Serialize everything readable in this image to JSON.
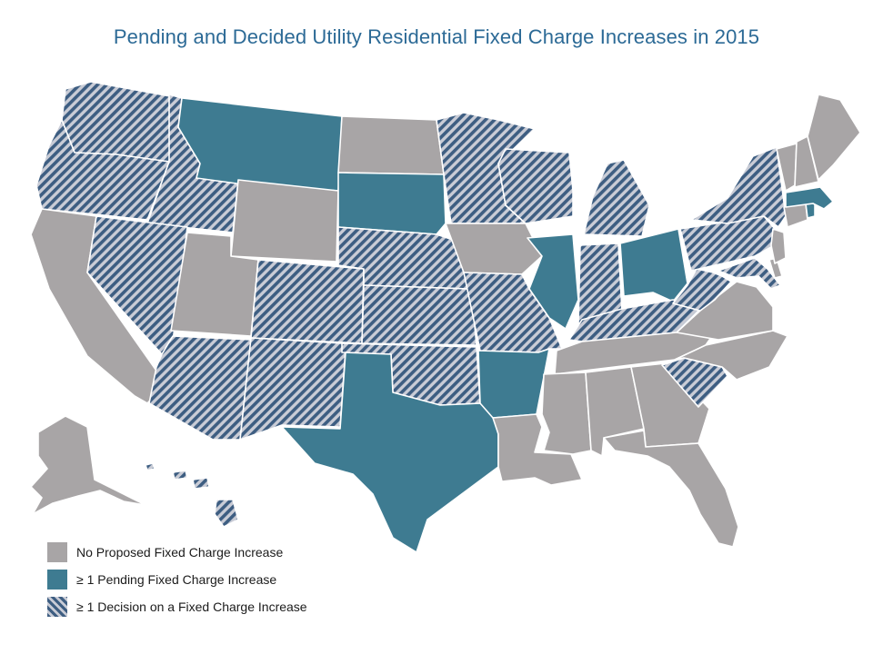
{
  "title": "Pending and Decided Utility Residential Fixed Charge Increases in 2015",
  "colors": {
    "none": "#a8a5a6",
    "pending": "#3e7b91",
    "decision_stripe_a": "#3e5e82",
    "decision_stripe_b": "#c9ccd6"
  },
  "legend": [
    {
      "key": "none",
      "label": "No Proposed Fixed Charge Increase"
    },
    {
      "key": "pending",
      "label": "≥ 1 Pending Fixed Charge Increase"
    },
    {
      "key": "decision",
      "label": "≥ 1 Decision on a Fixed Charge Increase"
    }
  ],
  "states": {
    "WA": "decision",
    "OR": "decision",
    "ID": "decision",
    "NV": "decision",
    "CA": "none",
    "MT": "pending",
    "WY": "none",
    "UT": "none",
    "AZ": "decision",
    "NM": "decision",
    "CO": "decision",
    "ND": "none",
    "SD": "pending",
    "NE": "decision",
    "KS": "decision",
    "OK": "decision",
    "TX": "pending",
    "MN": "decision",
    "IA": "none",
    "MO": "decision",
    "AR": "pending",
    "LA": "none",
    "WI": "decision",
    "IL": "pending",
    "MI": "decision",
    "IN": "decision",
    "OH": "pending",
    "KY": "decision",
    "TN": "none",
    "MS": "none",
    "AL": "none",
    "GA": "none",
    "FL": "none",
    "SC": "decision",
    "NC": "none",
    "VA": "none",
    "WV": "decision",
    "PA": "decision",
    "NY": "decision",
    "VT": "none",
    "NH": "none",
    "ME": "none",
    "MA": "pending",
    "RI": "pending",
    "CT": "none",
    "NJ": "none",
    "DE": "none",
    "MD": "decision",
    "AK": "none",
    "HI": "decision"
  }
}
